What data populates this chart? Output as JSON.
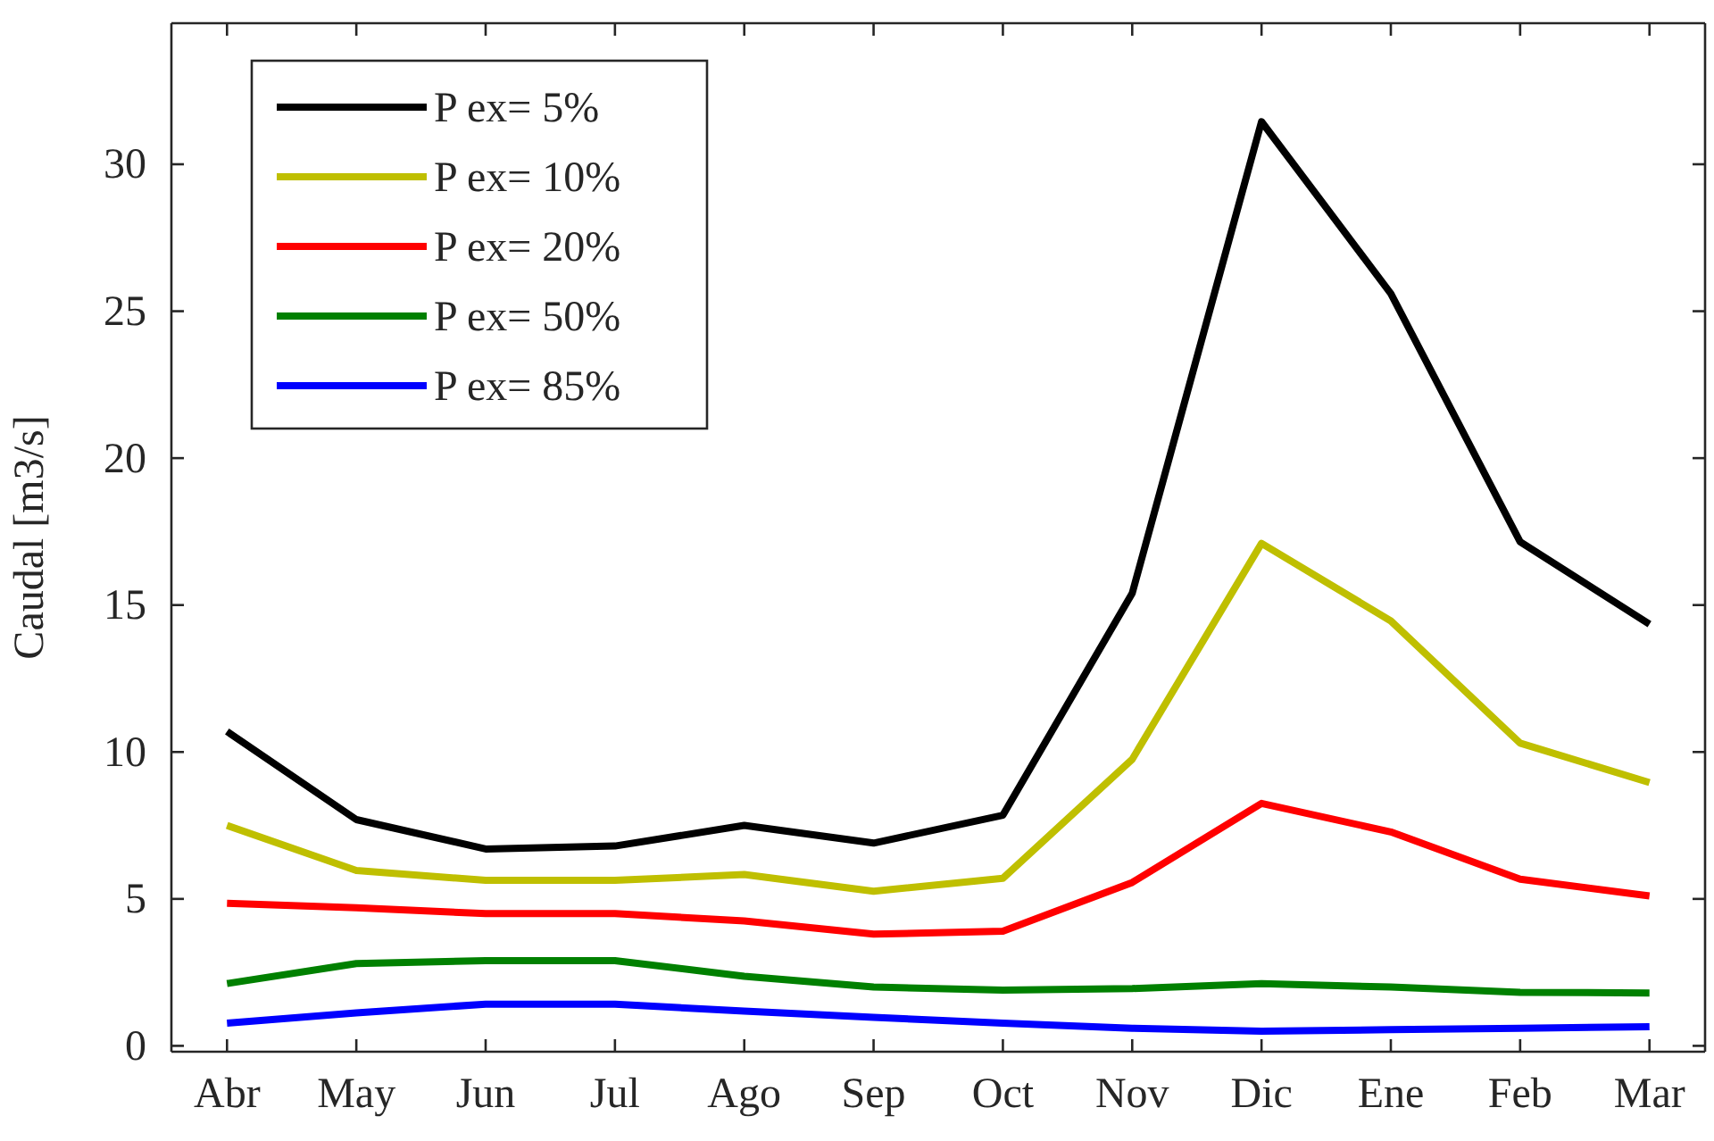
{
  "chart_data": {
    "type": "line",
    "ylabel": "Caudal [m3/s]",
    "categories": [
      "Abr",
      "May",
      "Jun",
      "Jul",
      "Ago",
      "Sep",
      "Oct",
      "Nov",
      "Dic",
      "Ene",
      "Feb",
      "Mar"
    ],
    "ylim": [
      -0.2,
      34.8
    ],
    "yticks": [
      0,
      5,
      10,
      15,
      20,
      25,
      30
    ],
    "grid": false,
    "legend": "top left",
    "line_style": "solid",
    "marker": "none",
    "series": [
      {
        "name": "P ex= 5%",
        "color": "#000000",
        "values": [
          10.7,
          7.7,
          6.7,
          6.8,
          7.5,
          6.9,
          7.85,
          15.4,
          31.45,
          25.6,
          17.15,
          14.35
        ]
      },
      {
        "name": "P ex= 10%",
        "color": "#bfbf00",
        "values": [
          7.5,
          5.97,
          5.63,
          5.63,
          5.83,
          5.26,
          5.7,
          9.75,
          17.1,
          14.46,
          10.3,
          8.96
        ]
      },
      {
        "name": "P ex= 20%",
        "color": "#ff0000",
        "values": [
          4.85,
          4.7,
          4.5,
          4.5,
          4.25,
          3.8,
          3.9,
          5.56,
          8.25,
          7.28,
          5.67,
          5.1
        ]
      },
      {
        "name": "P ex= 50%",
        "color": "#008000",
        "values": [
          2.12,
          2.8,
          2.9,
          2.9,
          2.37,
          2.0,
          1.9,
          1.95,
          2.12,
          2.0,
          1.82,
          1.8
        ]
      },
      {
        "name": "P ex= 85%",
        "color": "#0000ff",
        "values": [
          0.77,
          1.12,
          1.42,
          1.42,
          1.18,
          0.97,
          0.77,
          0.6,
          0.5,
          0.55,
          0.6,
          0.65
        ]
      }
    ]
  }
}
